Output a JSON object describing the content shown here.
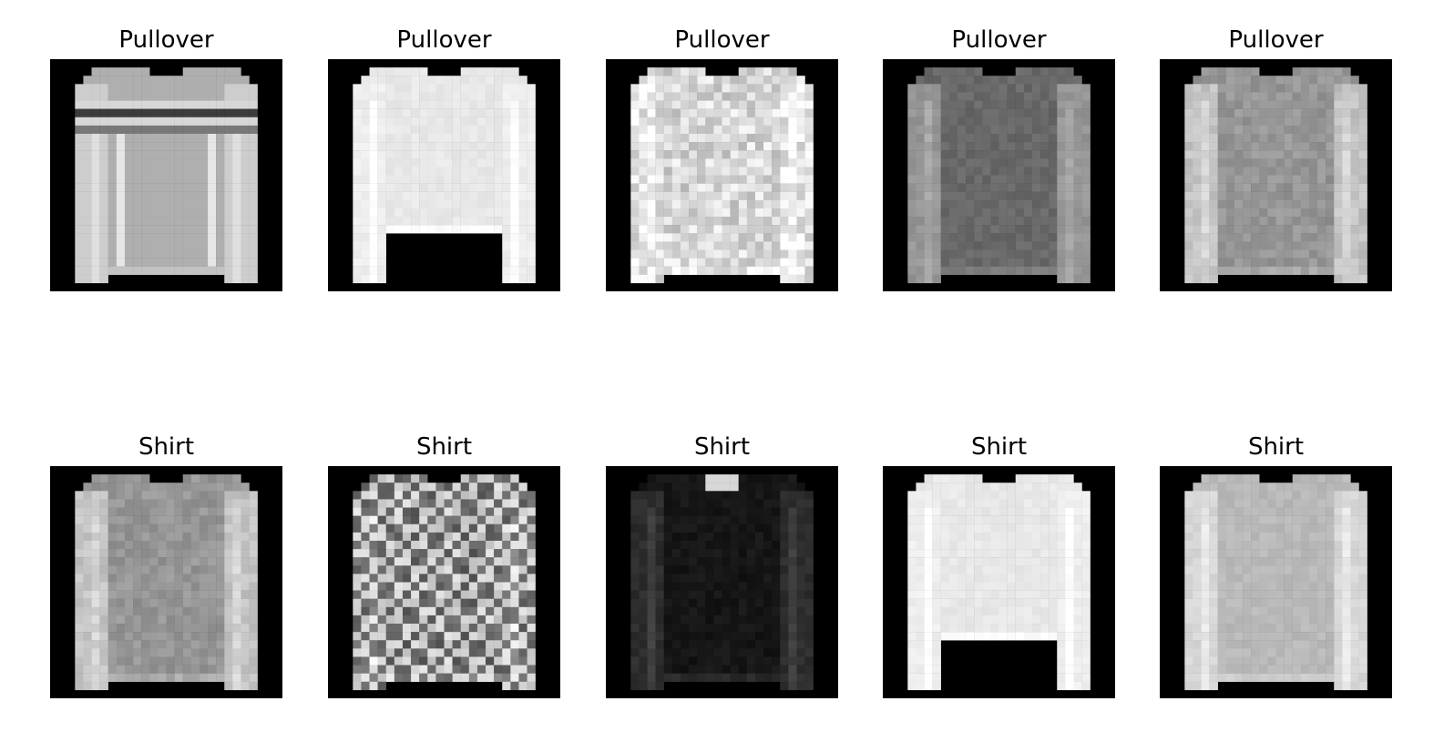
{
  "rows": [
    {
      "items": [
        {
          "label": "Pullover",
          "style": "stripe"
        },
        {
          "label": "Pullover",
          "style": "bright"
        },
        {
          "label": "Pullover",
          "style": "pattern"
        },
        {
          "label": "Pullover",
          "style": "dark"
        },
        {
          "label": "Pullover",
          "style": "mid"
        }
      ]
    },
    {
      "items": [
        {
          "label": "Shirt",
          "style": "mid"
        },
        {
          "label": "Shirt",
          "style": "check"
        },
        {
          "label": "Shirt",
          "style": "black"
        },
        {
          "label": "Shirt",
          "style": "bright"
        },
        {
          "label": "Shirt",
          "style": "light"
        }
      ]
    }
  ],
  "colors": {
    "background": "#ffffff",
    "image_bg": "#000000"
  }
}
